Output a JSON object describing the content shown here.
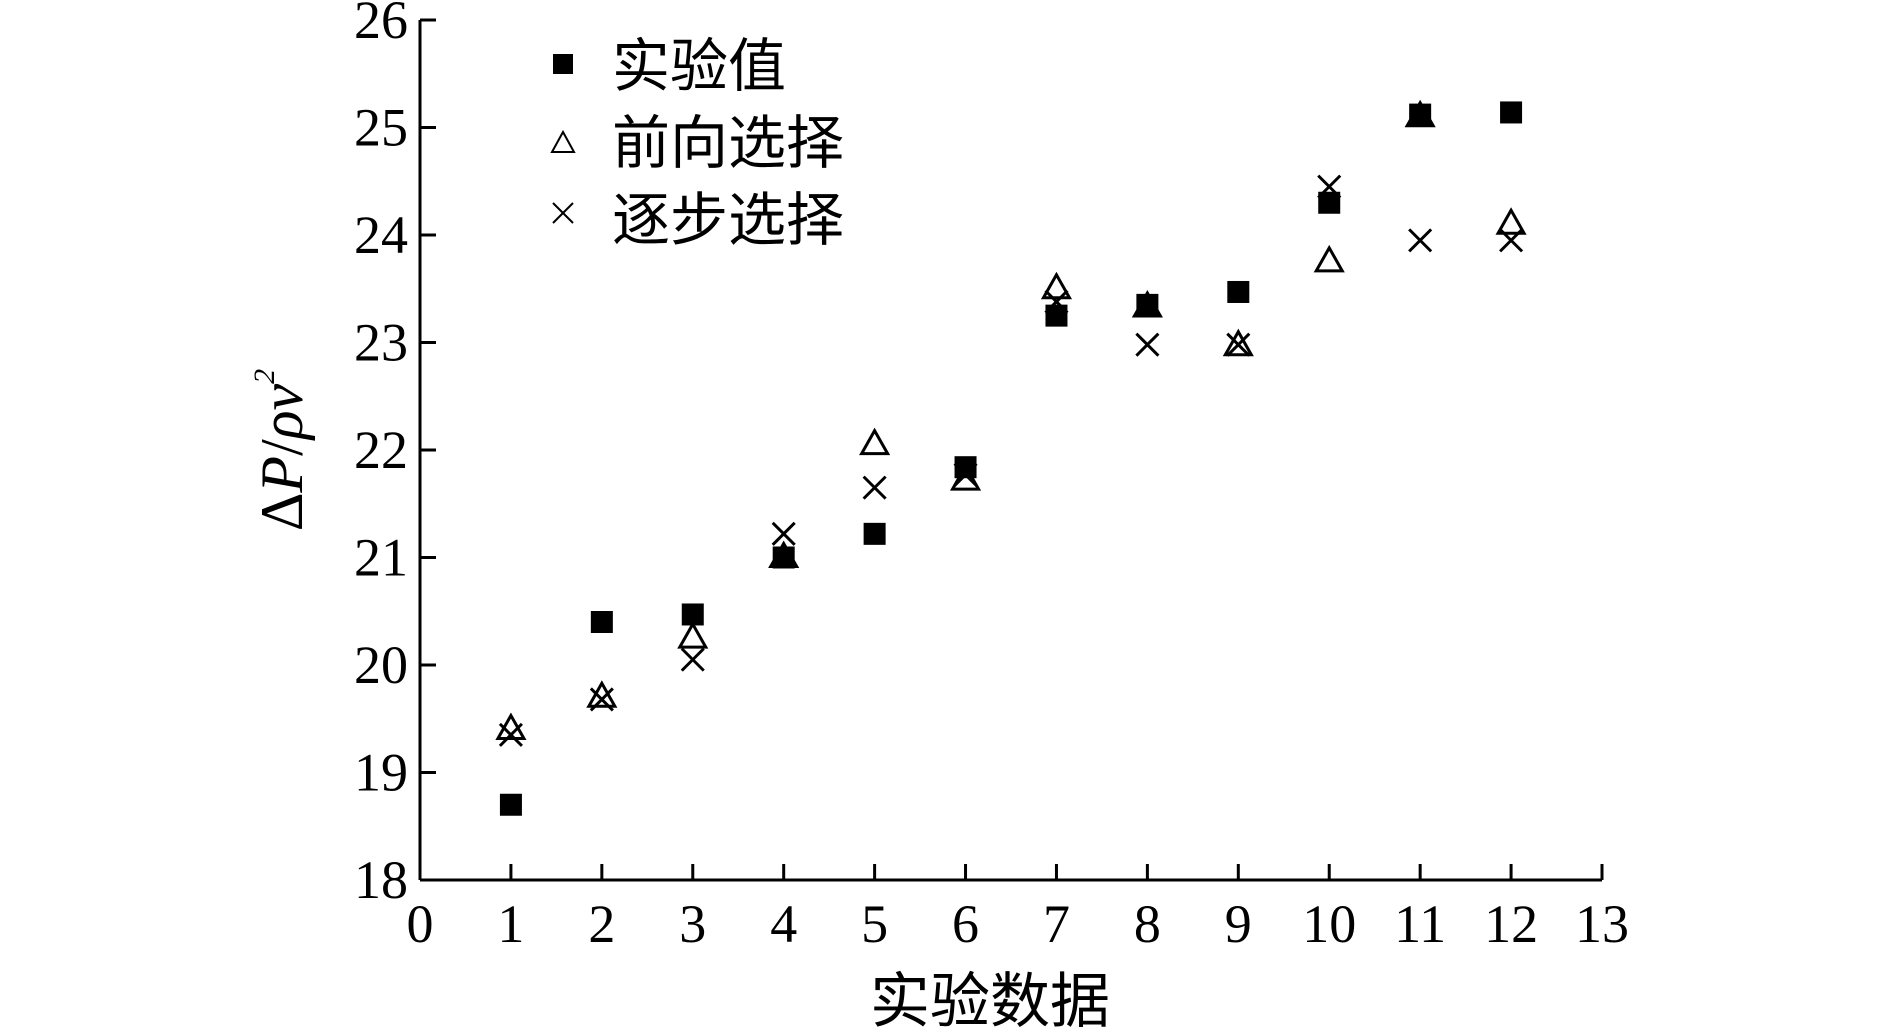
{
  "chart_data": {
    "type": "scatter",
    "title": "",
    "xlabel": "实验数据",
    "ylabel_parts": [
      "Δ",
      "P",
      "/",
      "ρv",
      "2"
    ],
    "xlim": [
      0,
      13
    ],
    "ylim": [
      18,
      26
    ],
    "xticks": [
      0,
      1,
      2,
      3,
      4,
      5,
      6,
      7,
      8,
      9,
      10,
      11,
      12,
      13
    ],
    "yticks": [
      18,
      19,
      20,
      21,
      22,
      23,
      24,
      25,
      26
    ],
    "grid": false,
    "legend_position": "top-left",
    "x": [
      1,
      2,
      3,
      4,
      5,
      6,
      7,
      8,
      9,
      10,
      11,
      12
    ],
    "series": [
      {
        "name": "实验值",
        "marker": "filled-square",
        "values": [
          18.7,
          20.4,
          20.47,
          21.0,
          21.22,
          21.84,
          23.25,
          23.35,
          23.47,
          24.3,
          25.12,
          25.14
        ]
      },
      {
        "name": "前向选择",
        "marker": "open-triangle",
        "values": [
          19.4,
          19.7,
          20.25,
          21.0,
          22.05,
          21.72,
          23.5,
          23.33,
          22.97,
          23.75,
          25.1,
          24.1
        ]
      },
      {
        "name": "逐步选择",
        "marker": "x-cross",
        "values": [
          19.35,
          19.68,
          20.05,
          21.22,
          21.65,
          21.77,
          23.38,
          22.98,
          22.98,
          24.45,
          23.95,
          23.95
        ]
      }
    ]
  }
}
